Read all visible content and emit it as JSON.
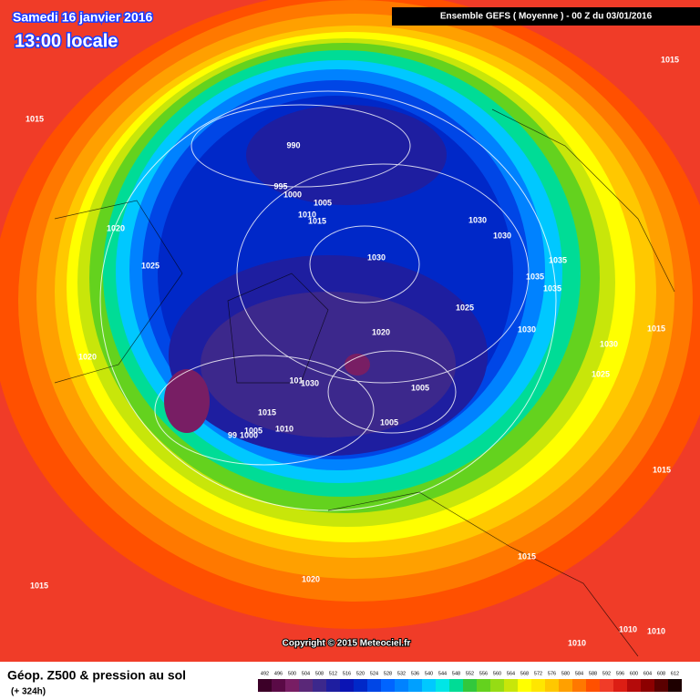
{
  "header": {
    "date": "Samedi 16 janvier 2016",
    "time": "13:00 locale",
    "model": "Ensemble GEFS  ( Moyenne )  -  00 Z du 03/01/2016"
  },
  "isobar_labels": [
    "1015",
    "990",
    "995",
    "1000",
    "1005",
    "1010",
    "1015",
    "1020",
    "1025",
    "1030",
    "1030",
    "1030",
    "1035",
    "1035",
    "1035",
    "1025",
    "1020",
    "1030",
    "1030",
    "1015",
    "1025",
    "1020",
    "1015",
    "101",
    "1030",
    "1005",
    "1005",
    "1015",
    "1005",
    "1010",
    "99",
    "1000",
    "1015",
    "1015",
    "1020",
    "1015",
    "1010",
    "1010",
    "1010"
  ],
  "copyright": "Copyright © 2015 Meteociel.fr",
  "footer": {
    "title": "Géop. Z500 & pression au sol",
    "lead": "(+ 324h)"
  },
  "legend": {
    "values": [
      492,
      496,
      500,
      504,
      508,
      512,
      516,
      520,
      524,
      528,
      532,
      536,
      540,
      544,
      548,
      552,
      556,
      560,
      564,
      568,
      572,
      576,
      580,
      584,
      588,
      592,
      596,
      600,
      604,
      608,
      612
    ],
    "colors": [
      "#3c0028",
      "#5a0a46",
      "#781e64",
      "#5a2878",
      "#3c288c",
      "#1e1ea0",
      "#0a14b4",
      "#0028c8",
      "#0046e6",
      "#0064ff",
      "#0082ff",
      "#00a0ff",
      "#00c8ff",
      "#00e6e6",
      "#00dc96",
      "#32c83c",
      "#64d21e",
      "#96dc14",
      "#c8e60a",
      "#ffff00",
      "#ffe600",
      "#ffc800",
      "#ffa000",
      "#ff7800",
      "#ff5000",
      "#f03c28",
      "#dc1e14",
      "#b40a0a",
      "#8c0000",
      "#5a0000",
      "#1e0000"
    ]
  }
}
